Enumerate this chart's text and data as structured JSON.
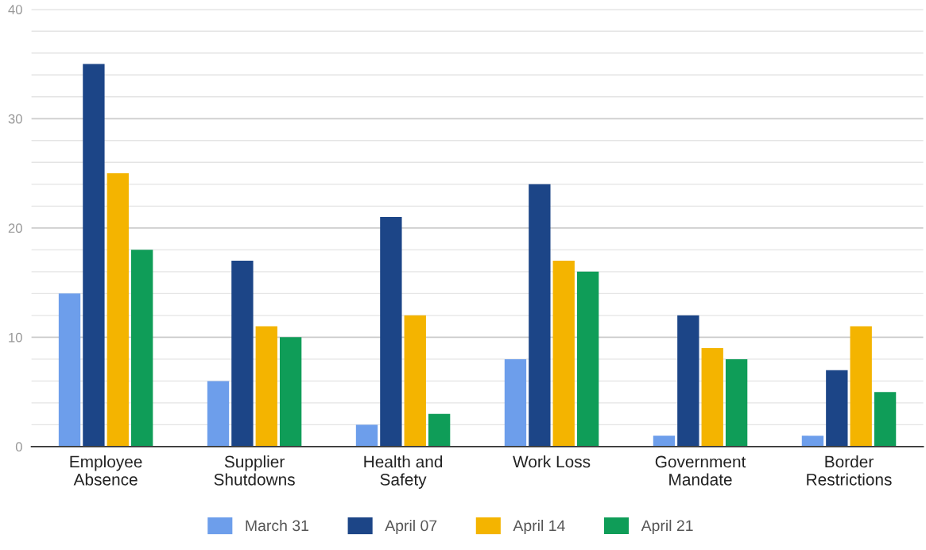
{
  "chart_data": {
    "type": "bar",
    "categories": [
      "Employee\nAbsence",
      "Supplier\nShutdowns",
      "Health and\nSafety",
      "Work Loss",
      "Government\nMandate",
      "Border\nRestrictions"
    ],
    "series": [
      {
        "name": "March 31",
        "color": "#6d9eeb",
        "values": [
          14,
          6,
          2,
          8,
          1,
          1
        ]
      },
      {
        "name": "April 07",
        "color": "#1c4587",
        "values": [
          35,
          17,
          21,
          24,
          12,
          7
        ]
      },
      {
        "name": "April 14",
        "color": "#f4b400",
        "values": [
          25,
          11,
          12,
          17,
          9,
          11
        ]
      },
      {
        "name": "April 21",
        "color": "#0f9d58",
        "values": [
          18,
          10,
          3,
          16,
          8,
          5
        ]
      }
    ],
    "ylim": [
      0,
      40
    ],
    "yticks": [
      0,
      {
        "value": 2,
        "label": null
      },
      {
        "value": 4,
        "label": null
      },
      {
        "value": 6,
        "label": null
      },
      {
        "value": 8,
        "label": null
      },
      10,
      {
        "value": 12,
        "label": null
      },
      {
        "value": 14,
        "label": null
      },
      {
        "value": 16,
        "label": null
      },
      {
        "value": 18,
        "label": null
      },
      20,
      {
        "value": 22,
        "label": null
      },
      {
        "value": 24,
        "label": null
      },
      {
        "value": 26,
        "label": null
      },
      {
        "value": 28,
        "label": null
      },
      30,
      {
        "value": 32,
        "label": null
      },
      {
        "value": 34,
        "label": null
      },
      {
        "value": 36,
        "label": null
      },
      {
        "value": 38,
        "label": null
      },
      40
    ],
    "grid": "y",
    "legend": "bottom"
  }
}
